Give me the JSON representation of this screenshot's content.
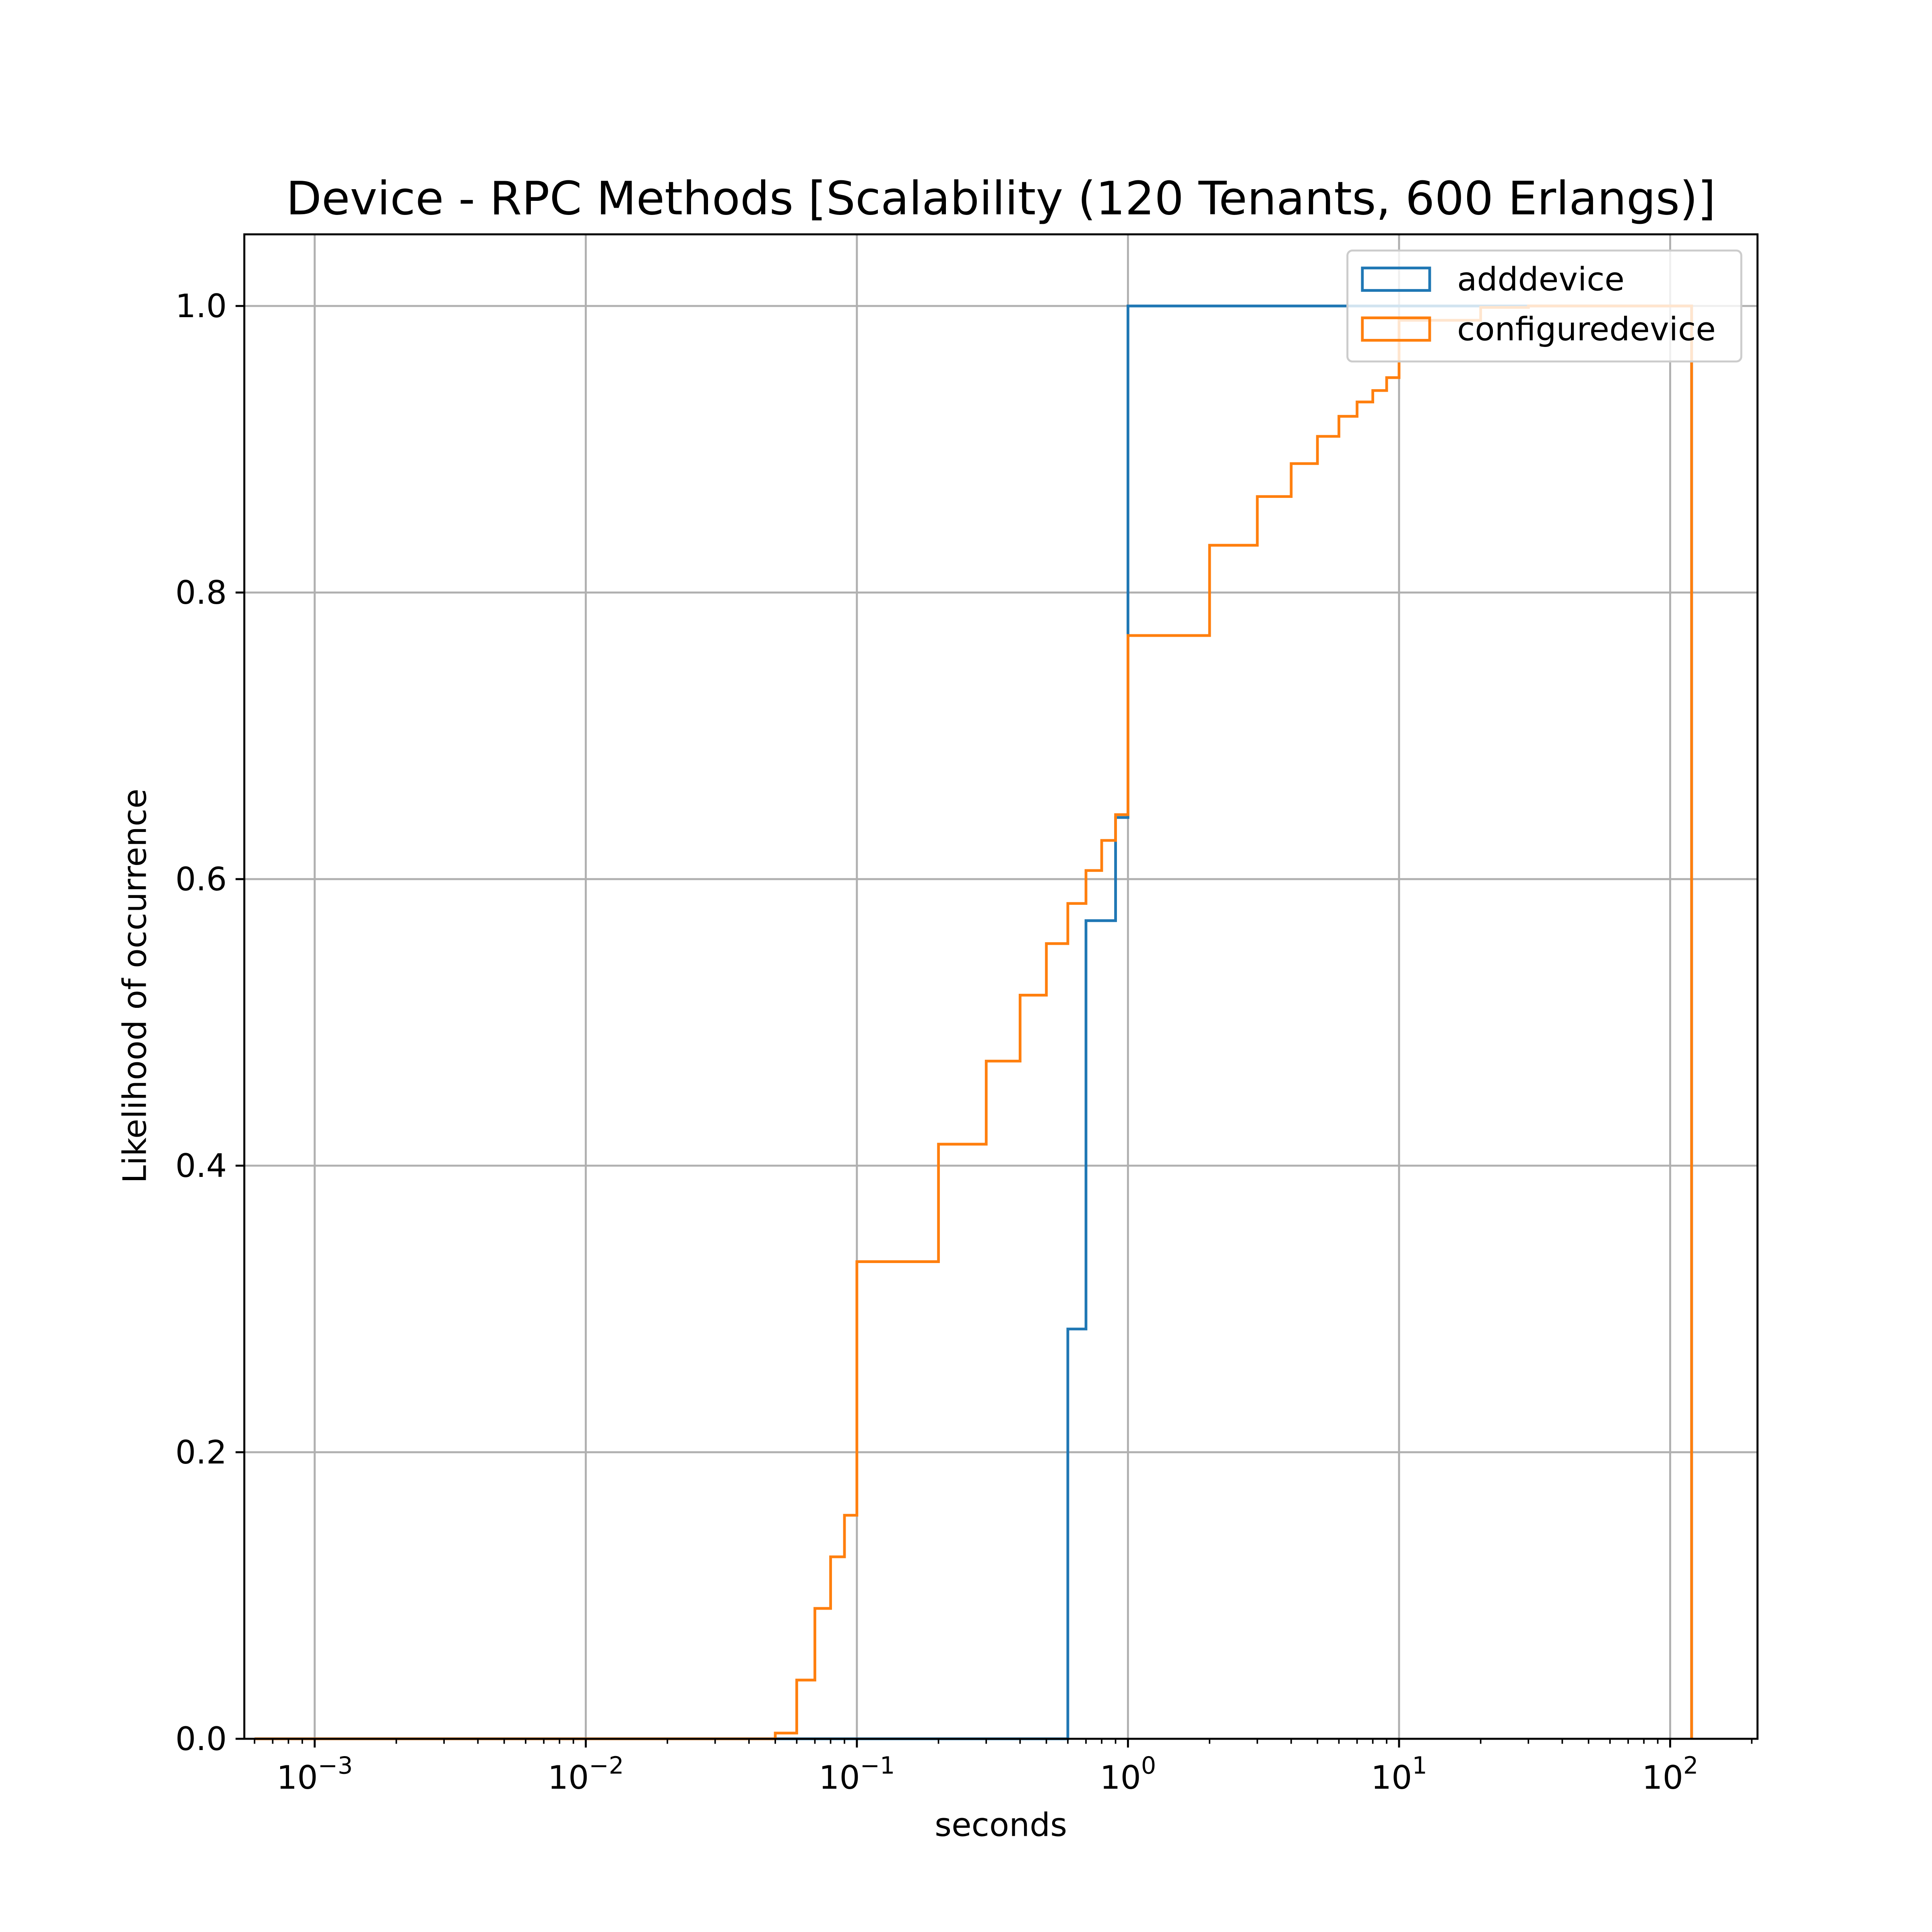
{
  "chart_data": {
    "type": "step",
    "title": "Device - RPC Methods [Scalability (120 Tenants, 600 Erlangs)]",
    "xlabel": "seconds",
    "ylabel": "Likelihood of occurrence",
    "xscale": "log",
    "xlim": [
      0.00055,
      210
    ],
    "ylim": [
      0.0,
      1.05
    ],
    "grid": true,
    "legend_position": "top-right",
    "x_ticks": [
      {
        "value": 0.001,
        "base": "10",
        "exp": "−3"
      },
      {
        "value": 0.01,
        "base": "10",
        "exp": "−2"
      },
      {
        "value": 0.1,
        "base": "10",
        "exp": "−1"
      },
      {
        "value": 1,
        "base": "10",
        "exp": "0"
      },
      {
        "value": 10,
        "base": "10",
        "exp": "1"
      },
      {
        "value": 100,
        "base": "10",
        "exp": "2"
      }
    ],
    "y_ticks": [
      {
        "value": 0.0,
        "label": "0.0"
      },
      {
        "value": 0.2,
        "label": "0.2"
      },
      {
        "value": 0.4,
        "label": "0.4"
      },
      {
        "value": 0.6,
        "label": "0.6"
      },
      {
        "value": 0.8,
        "label": "0.8"
      },
      {
        "value": 1.0,
        "label": "1.0"
      }
    ],
    "series": [
      {
        "name": "adddevice",
        "color": "#1f77b4",
        "bin_edges": [
          0.0006,
          0.6,
          0.7,
          0.9,
          1.0,
          120
        ],
        "cumulative": [
          0.0,
          0.286,
          0.571,
          0.643,
          1.0
        ]
      },
      {
        "name": "configuredevice",
        "color": "#ff7f0e",
        "bin_edges": [
          0.0006,
          0.05,
          0.06,
          0.07,
          0.08,
          0.09,
          0.1,
          0.2,
          0.3,
          0.4,
          0.5,
          0.6,
          0.7,
          0.8,
          0.9,
          1.0,
          2,
          3,
          4,
          5,
          6,
          7,
          8,
          9,
          10,
          20,
          30,
          120
        ],
        "cumulative": [
          0.0,
          0.004,
          0.041,
          0.091,
          0.127,
          0.156,
          0.333,
          0.415,
          0.473,
          0.519,
          0.555,
          0.583,
          0.606,
          0.627,
          0.645,
          0.77,
          0.833,
          0.867,
          0.89,
          0.909,
          0.923,
          0.933,
          0.941,
          0.95,
          0.99,
          0.999,
          1.0
        ]
      }
    ]
  }
}
